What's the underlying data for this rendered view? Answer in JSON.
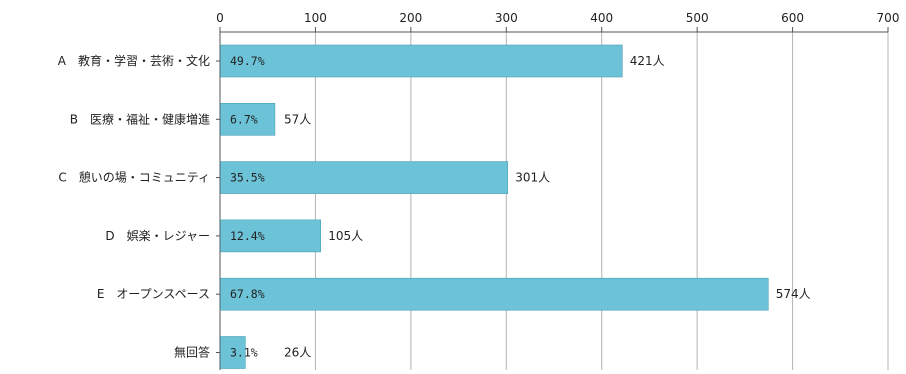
{
  "chart_data": {
    "type": "bar",
    "orientation": "horizontal",
    "categories": [
      "A　教育・学習・芸術・文化",
      "B　医療・福祉・健康増進",
      "C　憩いの場・コミュニティ",
      "D　娯楽・レジャー",
      "E　オープンスペース",
      "無回答"
    ],
    "values": [
      421,
      57,
      301,
      105,
      574,
      26
    ],
    "value_labels": [
      "421人",
      "57人",
      "301人",
      "105人",
      "574人",
      "26人"
    ],
    "percent_labels": [
      "49.7%",
      "6.7%",
      "35.5%",
      "12.4%",
      "67.8%",
      "3.1%"
    ],
    "xlim": [
      0,
      700
    ],
    "xticks": [
      0,
      100,
      200,
      300,
      400,
      500,
      600,
      700
    ],
    "xaxis_position": "top",
    "grid": true,
    "bar_color": "#6cc3d8",
    "bar_edge_color": "#4a9fb5",
    "grid_color": "#b4b4b4"
  }
}
